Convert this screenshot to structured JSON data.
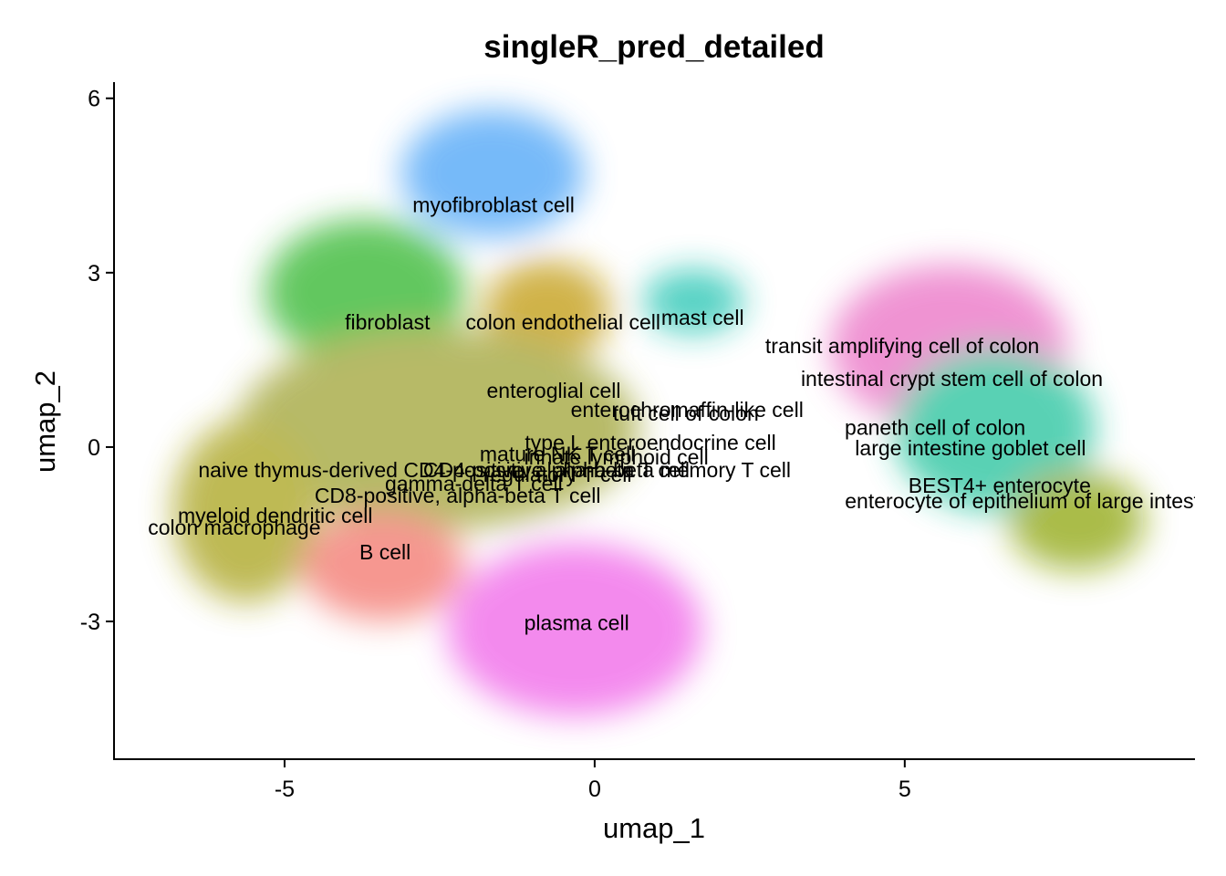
{
  "chart_data": {
    "type": "scatter",
    "title": "singleR_pred_detailed",
    "x_label": "umap_1",
    "y_label": "umap_2",
    "xlim": [
      -7.75,
      9.68
    ],
    "ylim": [
      -5.37,
      6.2
    ],
    "xticks": [
      -5,
      0,
      5
    ],
    "yticks": [
      -3,
      0,
      3,
      6
    ],
    "labels": [
      {
        "text": "myofibroblast cell",
        "x": -1.63,
        "y": 4.14
      },
      {
        "text": "fibroblast",
        "x": -3.34,
        "y": 2.12
      },
      {
        "text": "colon endothelial cell",
        "x": -0.51,
        "y": 2.12
      },
      {
        "text": "mast cell",
        "x": 1.74,
        "y": 2.2
      },
      {
        "text": "transit amplifying cell of colon",
        "x": 4.96,
        "y": 1.71
      },
      {
        "text": "intestinal crypt stem cell of colon",
        "x": 5.76,
        "y": 1.15
      },
      {
        "text": "enteroglial cell",
        "x": -0.66,
        "y": 0.94
      },
      {
        "text": "enterochromaffin-like cell",
        "x": 1.49,
        "y": 0.61
      },
      {
        "text": "tuft cell of colon",
        "x": 1.47,
        "y": 0.55
      },
      {
        "text": "paneth cell of colon",
        "x": 5.49,
        "y": 0.31
      },
      {
        "text": "large intestine goblet cell",
        "x": 6.06,
        "y": -0.05
      },
      {
        "text": "type L enteroendocrine cell",
        "x": 0.9,
        "y": 0.05
      },
      {
        "text": "mature NK T cell",
        "x": -0.6,
        "y": -0.15
      },
      {
        "text": "innate lymphoid cell",
        "x": 0.35,
        "y": -0.2
      },
      {
        "text": "CD4-positive, alpha-beta memory T cell",
        "x": 0.2,
        "y": -0.42
      },
      {
        "text": "regulatory T cell",
        "x": -0.6,
        "y": -0.5
      },
      {
        "text": "BEST4+ enterocyte",
        "x": 6.53,
        "y": -0.69
      },
      {
        "text": "enterocyte of epithelium of large intestine",
        "x": 7.12,
        "y": -0.96
      },
      {
        "text": "naive thymus-derived CD4-positive, alpha-beta T cell",
        "x": -2.43,
        "y": -0.42
      },
      {
        "text": "gamma-delta T cell",
        "x": -1.95,
        "y": -0.66
      },
      {
        "text": "CD8-positive, alpha-beta T cell",
        "x": -2.21,
        "y": -0.86
      },
      {
        "text": "myeloid dendritic cell",
        "x": -5.15,
        "y": -1.21
      },
      {
        "text": "colon macrophage",
        "x": -5.81,
        "y": -1.41
      },
      {
        "text": "B cell",
        "x": -3.38,
        "y": -1.84
      },
      {
        "text": "plasma cell",
        "x": -0.29,
        "y": -3.05
      }
    ]
  }
}
